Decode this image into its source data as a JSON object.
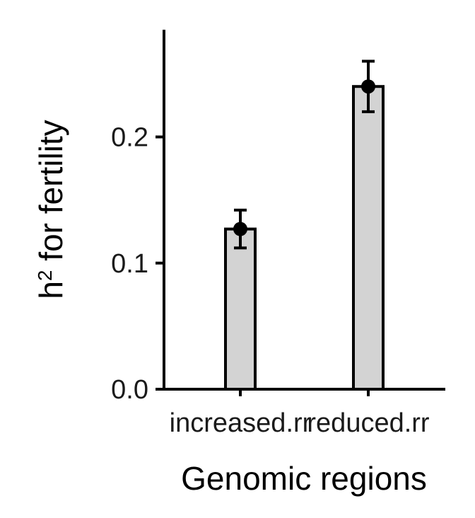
{
  "chart_data": {
    "type": "bar",
    "categories": [
      "increased.rr",
      "reduced.rr"
    ],
    "values": [
      0.127,
      0.24
    ],
    "error_low": [
      0.112,
      0.22
    ],
    "error_high": [
      0.142,
      0.26
    ],
    "xlabel": "Genomic regions",
    "ylabel_main": "h",
    "ylabel_superscript": "2",
    "ylabel_rest": " for fertility",
    "ylim": [
      0,
      0.285
    ],
    "yticks": [
      0.0,
      0.1,
      0.2
    ],
    "ytick_labels": [
      "0.0",
      "0.1",
      "0.2"
    ],
    "grid": false,
    "legend": "none",
    "bar_color": "#d3d3d3",
    "edge_color": "#000000",
    "point_color": "#000000"
  }
}
